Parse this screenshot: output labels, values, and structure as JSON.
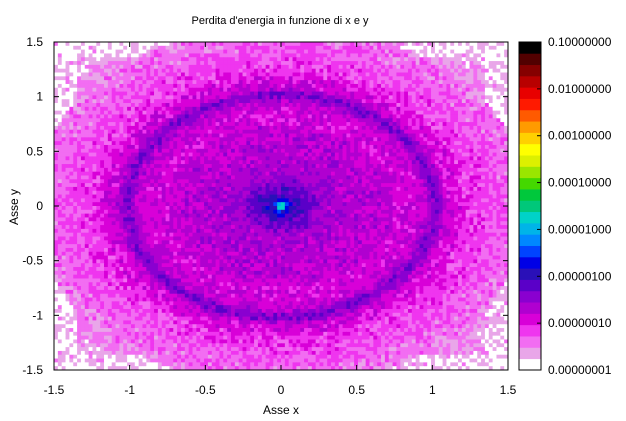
{
  "chart_data": {
    "type": "heatmap",
    "title": "Perdita d'energia in funzione di x e y",
    "xlabel": "Asse x",
    "ylabel": "Asse y",
    "xlim": [
      -1.5,
      1.5
    ],
    "ylim": [
      -1.5,
      1.5
    ],
    "xticks": [
      "-1.5",
      "-1",
      "-0.5",
      "0",
      "0.5",
      "1",
      "1.5"
    ],
    "yticks": [
      "1.5",
      "1",
      "0.5",
      "0",
      "-0.5",
      "-1",
      "-1.5"
    ],
    "colorbar": {
      "scale": "log",
      "range": [
        1e-08,
        0.1
      ],
      "tick_labels": [
        "0.10000000",
        "0.01000000",
        "0.00100000",
        "0.00010000",
        "0.00001000",
        "0.00000100",
        "0.00000010",
        "0.00000001"
      ],
      "colors": [
        "#ffffff",
        "#e9a6e9",
        "#f26df2",
        "#ef35ef",
        "#d800d8",
        "#b000d0",
        "#8a00d0",
        "#5a00c8",
        "#2a10b8",
        "#0000e6",
        "#0044ff",
        "#0088ff",
        "#00b4e8",
        "#00d2c8",
        "#00c87a",
        "#00c83c",
        "#44d800",
        "#9ae600",
        "#dcf000",
        "#ffff00",
        "#ffd000",
        "#ff9a00",
        "#ff5a00",
        "#ff1a00",
        "#e80000",
        "#b80000",
        "#860000",
        "#520000",
        "#000000"
      ]
    },
    "grid": false
  }
}
